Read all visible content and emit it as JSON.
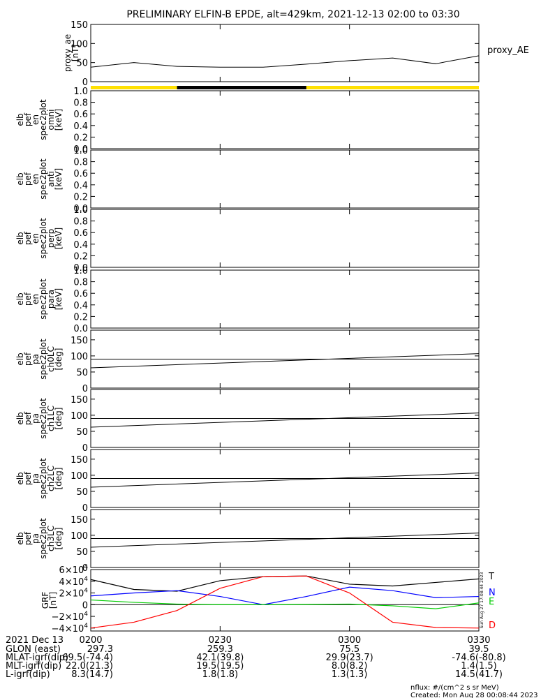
{
  "title": "PRELIMINARY ELFIN-B EPDE, alt=429km, 2021-12-13 02:00 to 03:30",
  "colors": {
    "T": "#000000",
    "N": "#0000ff",
    "E": "#00cc00",
    "D": "#ff0000",
    "yellow": "#ffe000",
    "black": "#000000"
  },
  "chart_data": [
    {
      "type": "line",
      "name": "proxy_ae",
      "ylabel": [
        "proxy_ae",
        "[nT]"
      ],
      "ylim": [
        0,
        150
      ],
      "yticks": [
        "150",
        "100",
        "50",
        "0"
      ],
      "legend": "proxy_AE",
      "x_min": [
        0,
        10,
        20,
        30,
        40,
        50,
        60,
        70,
        80,
        90
      ],
      "values": [
        38,
        50,
        40,
        38,
        38,
        46,
        55,
        62,
        47,
        68
      ]
    },
    {
      "type": "bar",
      "name": "status",
      "segments": [
        {
          "from": 0,
          "to": 20,
          "color": "yellow"
        },
        {
          "from": 20,
          "to": 50,
          "color": "black"
        },
        {
          "from": 50,
          "to": 90,
          "color": "yellow"
        }
      ]
    },
    {
      "type": "heatmap",
      "ylabel": [
        "elb",
        "pef",
        "en",
        "spec2plot",
        "omni",
        "[keV]"
      ],
      "ylim": [
        0,
        1
      ],
      "yticks": [
        "1.0",
        "0.8",
        "0.6",
        "0.4",
        "0.2",
        "0.0"
      ]
    },
    {
      "type": "heatmap",
      "ylabel": [
        "elb",
        "pef",
        "en",
        "spec2plot",
        "anti",
        "[keV]"
      ],
      "ylim": [
        0,
        1
      ],
      "yticks": [
        "1.0",
        "0.8",
        "0.6",
        "0.4",
        "0.2",
        "0.0"
      ]
    },
    {
      "type": "heatmap",
      "ylabel": [
        "elb",
        "pef",
        "en",
        "spec2plot",
        "perp",
        "[keV]"
      ],
      "ylim": [
        0,
        1
      ],
      "yticks": [
        "1.0",
        "0.8",
        "0.6",
        "0.4",
        "0.2",
        "0.0"
      ]
    },
    {
      "type": "heatmap",
      "ylabel": [
        "elb",
        "pef",
        "en",
        "spec2plot",
        "para",
        "[keV]"
      ],
      "ylim": [
        0,
        1
      ],
      "yticks": [
        "1.0",
        "0.8",
        "0.6",
        "0.4",
        "0.2",
        "0.0"
      ]
    },
    {
      "type": "line",
      "ylabel": [
        "elb",
        "pef",
        "pa",
        "spec2plot",
        "ch0LC",
        "[deg]"
      ],
      "ylim": [
        0,
        180
      ],
      "yticks": [
        "150",
        "100",
        "50",
        "0"
      ],
      "hline": 90,
      "line": [
        [
          0,
          63
        ],
        [
          90,
          107
        ]
      ]
    },
    {
      "type": "line",
      "ylabel": [
        "elb",
        "pef",
        "pa",
        "spec2plot",
        "ch1LC",
        "[deg]"
      ],
      "ylim": [
        0,
        180
      ],
      "yticks": [
        "150",
        "100",
        "50",
        "0"
      ],
      "hline": 90,
      "line": [
        [
          0,
          63
        ],
        [
          90,
          107
        ]
      ]
    },
    {
      "type": "line",
      "ylabel": [
        "elb",
        "pef",
        "pa",
        "spec2plot",
        "ch2LC",
        "[deg]"
      ],
      "ylim": [
        0,
        180
      ],
      "yticks": [
        "150",
        "100",
        "50",
        "0"
      ],
      "hline": 90,
      "line": [
        [
          0,
          63
        ],
        [
          90,
          107
        ]
      ]
    },
    {
      "type": "line",
      "ylabel": [
        "elb",
        "pef",
        "pa",
        "spec2plot",
        "ch3LC",
        "[deg]"
      ],
      "ylim": [
        0,
        180
      ],
      "yticks": [
        "150",
        "100",
        "50",
        "0"
      ],
      "hline": 90,
      "line": [
        [
          0,
          63
        ],
        [
          90,
          107
        ]
      ]
    },
    {
      "type": "line",
      "name": "GRF",
      "ylabel": [
        "GRF",
        "[nT]"
      ],
      "ylim": [
        -45000,
        60000
      ],
      "yticks": [
        {
          "v": 60000,
          "m": "6×10",
          "e": "4"
        },
        {
          "v": 40000,
          "m": "4×10",
          "e": "4"
        },
        {
          "v": 20000,
          "m": "2×10",
          "e": "4"
        },
        {
          "v": 0,
          "m": "0",
          "e": ""
        },
        {
          "v": -20000,
          "m": "−2×10",
          "e": "4"
        },
        {
          "v": -40000,
          "m": "−4×10",
          "e": "4"
        }
      ],
      "side_text": "Sun Aug 27 17:08:44 2023",
      "x_min": [
        0,
        10,
        20,
        30,
        40,
        50,
        60,
        70,
        80,
        90
      ],
      "series": [
        {
          "name": "T",
          "color": "T",
          "values": [
            43000,
            26000,
            23000,
            41000,
            48000,
            49000,
            35000,
            32000,
            38000,
            44000
          ]
        },
        {
          "name": "N",
          "color": "N",
          "values": [
            15000,
            20000,
            24000,
            14000,
            0,
            14000,
            30000,
            24000,
            12000,
            14000
          ]
        },
        {
          "name": "E",
          "color": "E",
          "values": [
            8000,
            4000,
            1000,
            0,
            0,
            500,
            1000,
            -2000,
            -7000,
            3000
          ]
        },
        {
          "name": "D",
          "color": "D",
          "values": [
            -40000,
            -30000,
            -10000,
            28000,
            48000,
            49000,
            20000,
            -30000,
            -39000,
            -40000
          ]
        }
      ]
    }
  ],
  "xaxis": {
    "date": "2021 Dec 13",
    "ticks": [
      {
        "min": 0,
        "label": "0200"
      },
      {
        "min": 30,
        "label": "0230"
      },
      {
        "min": 60,
        "label": "0300"
      },
      {
        "min": 90,
        "label": "0330"
      }
    ]
  },
  "ephem": [
    {
      "label": "GLON (east)",
      "values": [
        "297.3",
        "259.3",
        "75.5",
        "39.5"
      ]
    },
    {
      "label": "MLAT-igrf(dip)",
      "values": [
        "69.5(-74.4)",
        "42.1(39.8)",
        "29.9(23.7)",
        "-74.6(-80.8)"
      ]
    },
    {
      "label": "MLT-igrf(dip)",
      "values": [
        "22.0(21.3)",
        "19.5(19.5)",
        "8.0(8.2)",
        "1.4(1.5)"
      ]
    },
    {
      "label": "L-igrf(dip)",
      "values": [
        "8.3(14.7)",
        "1.8(1.8)",
        "1.3(1.3)",
        "14.5(41.7)"
      ]
    }
  ],
  "footer": {
    "units": "nflux: #/(cm^2 s sr MeV)",
    "created": "Created: Mon Aug 28 00:08:44 2023"
  }
}
